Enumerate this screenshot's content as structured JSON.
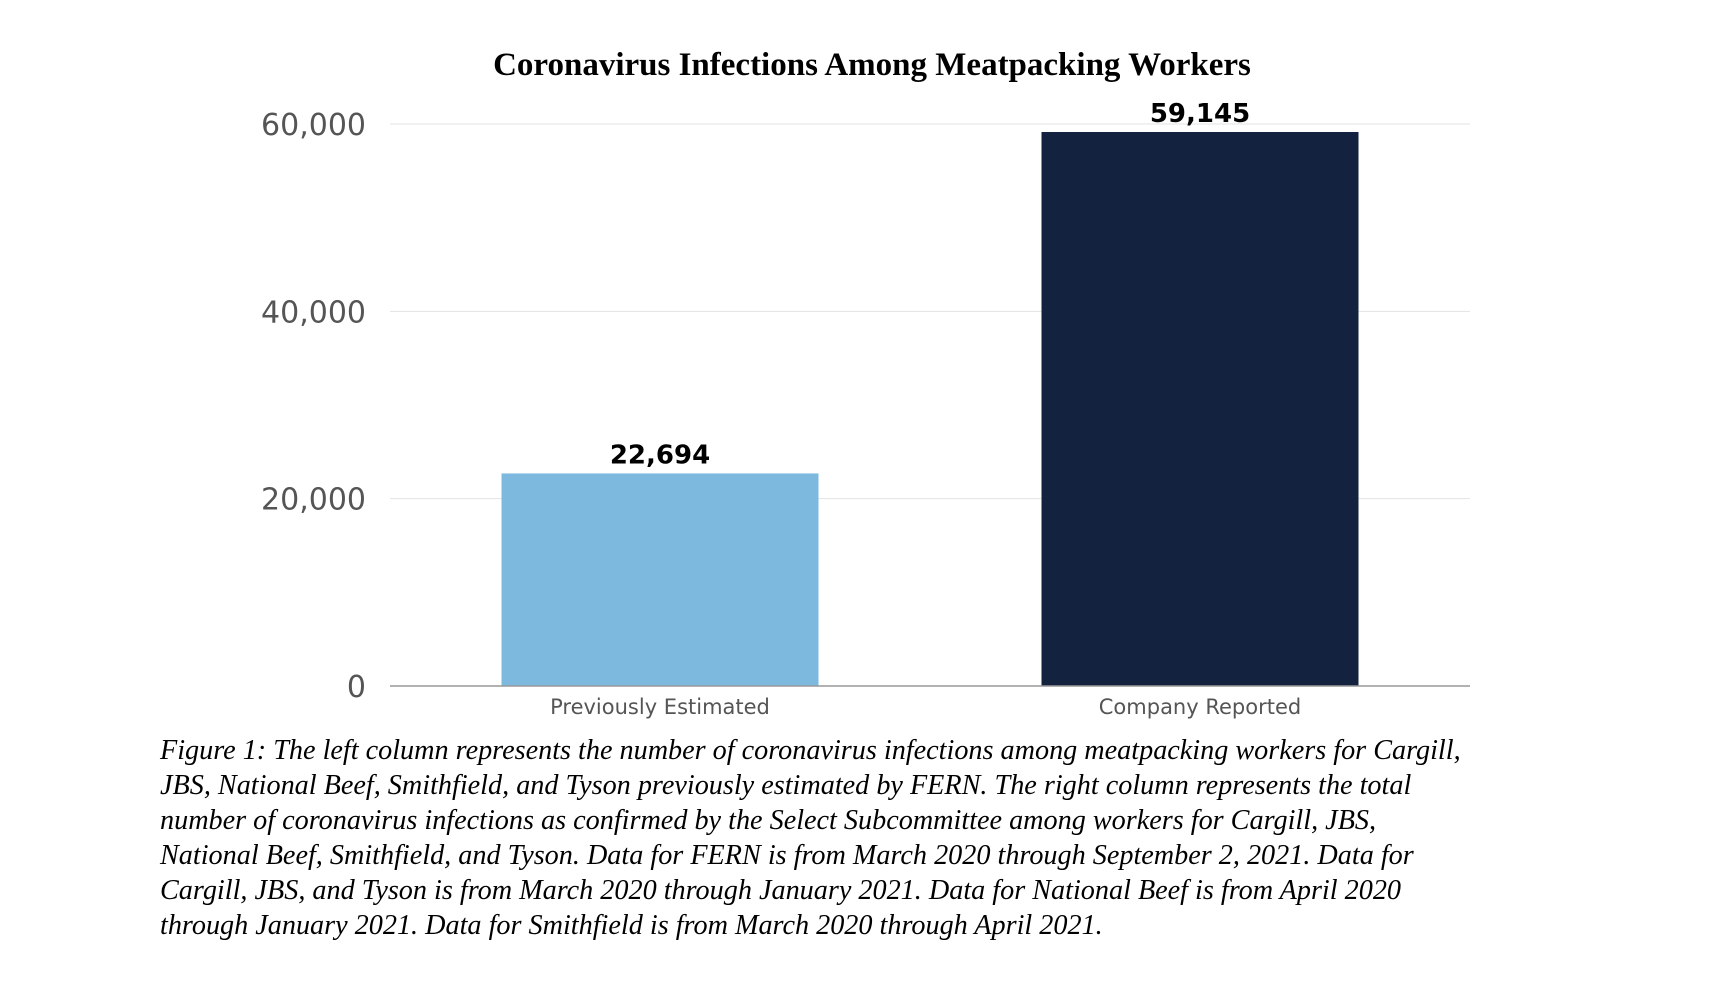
{
  "chart_data": {
    "type": "bar",
    "title": "Coronavirus Infections Among Meatpacking Workers",
    "categories": [
      "Previously Estimated",
      "Company Reported"
    ],
    "values": [
      22694,
      59145
    ],
    "data_labels": [
      "22,694",
      "59,145"
    ],
    "bar_colors": [
      "#7db9df",
      "#13233f"
    ],
    "yticks": [
      0,
      20000,
      40000,
      60000
    ],
    "ytick_labels": [
      "0",
      "20,000",
      "40,000",
      "60,000"
    ],
    "ylim": [
      0,
      60000
    ],
    "xlabel": "",
    "ylabel": "",
    "grid": true,
    "legend": "none"
  },
  "caption": {
    "lines": [
      "Figure 1:  The left column represents the number of coronavirus infections among meatpacking workers for Cargill,",
      "JBS, National Beef, Smithfield, and Tyson previously estimated by FERN.  The right column represents the total",
      "number of coronavirus infections as confirmed by the Select Subcommittee among workers for Cargill, JBS,",
      "National Beef, Smithfield, and Tyson.  Data for FERN is from March 2020 through September 2, 2021.  Data for",
      "Cargill, JBS, and Tyson is from March 2020 through January 2021.  Data for National Beef is from April 2020",
      "through January 2021.  Data for Smithfield is from March 2020 through April 2021."
    ]
  }
}
